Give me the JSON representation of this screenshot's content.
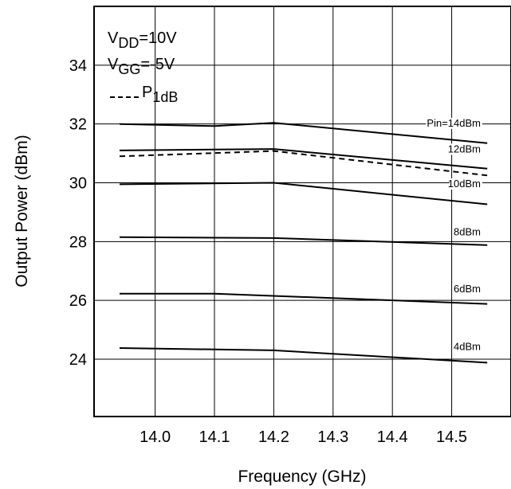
{
  "chart_data": {
    "type": "line",
    "title": "",
    "xlabel": "Frequency (GHz)",
    "ylabel": "Output Power (dBm)",
    "xlim": [
      13.897,
      14.6
    ],
    "ylim": [
      22.05,
      36
    ],
    "x_ticks": [
      "14.0",
      "14.1",
      "14.2",
      "14.3",
      "14.4",
      "14.5"
    ],
    "y_ticks": [
      "24",
      "26",
      "28",
      "30",
      "32",
      "34"
    ],
    "x_tick_values": [
      14.0,
      14.1,
      14.2,
      14.3,
      14.4,
      14.5
    ],
    "y_tick_values": [
      24,
      26,
      28,
      30,
      32,
      34
    ],
    "grid": true,
    "legend": {
      "vdd_main": "V",
      "vdd_sub": "DD",
      "vdd_value": "=10V",
      "vgg_main": "V",
      "vgg_sub": "GG",
      "vgg_value": "=-5V",
      "p_main": "P",
      "p_sub": "1dB"
    },
    "series": [
      {
        "name": "Pin=14dBm",
        "style": "solid",
        "x": [
          13.94,
          14.1,
          14.2,
          14.56
        ],
        "y": [
          32.0,
          31.93,
          32.04,
          31.35
        ]
      },
      {
        "name": "12dBm",
        "style": "solid",
        "x": [
          13.94,
          14.2,
          14.56
        ],
        "y": [
          31.1,
          31.15,
          30.48
        ]
      },
      {
        "name": "P1dB",
        "style": "dashed",
        "x": [
          13.94,
          14.2,
          14.56
        ],
        "y": [
          30.9,
          31.08,
          30.25
        ]
      },
      {
        "name": "10dBm",
        "style": "solid",
        "x": [
          13.94,
          14.2,
          14.56
        ],
        "y": [
          29.95,
          30.0,
          29.27
        ]
      },
      {
        "name": "8dBm",
        "style": "solid",
        "x": [
          13.94,
          14.2,
          14.56
        ],
        "y": [
          28.15,
          28.12,
          27.88
        ]
      },
      {
        "name": "6dBm",
        "style": "solid",
        "x": [
          13.94,
          14.1,
          14.56
        ],
        "y": [
          26.23,
          26.23,
          25.88
        ]
      },
      {
        "name": "4dBm",
        "style": "solid",
        "x": [
          13.94,
          14.2,
          14.56
        ],
        "y": [
          24.38,
          24.3,
          23.88
        ]
      }
    ]
  }
}
